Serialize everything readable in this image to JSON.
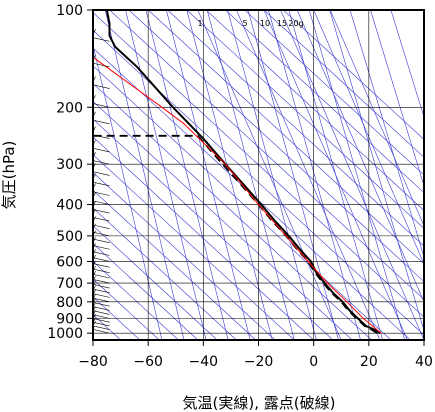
{
  "chart_data": {
    "type": "line",
    "subtype": "emagram",
    "xlabel": "気温(実線), 露点(破線)",
    "ylabel": "気圧(hPa)",
    "xlim": [
      -80,
      40
    ],
    "ylim": [
      1050,
      100
    ],
    "yscale": "log",
    "x_ticks": [
      -80,
      -60,
      -40,
      -20,
      0,
      20,
      40
    ],
    "x_tick_labels": [
      "−80",
      "−60",
      "−40",
      "−20",
      "0",
      "20",
      "40"
    ],
    "y_ticks": [
      100,
      200,
      300,
      400,
      500,
      600,
      700,
      800,
      900,
      1000
    ],
    "grid": true,
    "mixing_ratio_labels": [
      "1",
      "5",
      "10",
      "15",
      "20g"
    ],
    "colors": {
      "temperature": "#000000",
      "dewpoint": "#000000",
      "parcel": "#ff0000",
      "adiabats": "#3b3bd6",
      "grid": "#000000"
    },
    "series": [
      {
        "style": "solid",
        "points": [
          [
            24,
            1000
          ],
          [
            22,
            975
          ],
          [
            19,
            950
          ],
          [
            16,
            900
          ],
          [
            13,
            850
          ],
          [
            10.5,
            800
          ],
          [
            7,
            750
          ],
          [
            4,
            700
          ],
          [
            1,
            650
          ],
          [
            -1,
            600
          ],
          [
            -5,
            550
          ],
          [
            -9,
            500
          ],
          [
            -14,
            450
          ],
          [
            -19,
            400
          ],
          [
            -25,
            350
          ],
          [
            -32,
            300
          ],
          [
            -40,
            250
          ],
          [
            -51,
            200
          ],
          [
            -64,
            150
          ],
          [
            -72,
            130
          ],
          [
            -74,
            120
          ],
          [
            -74,
            110
          ],
          [
            -75,
            100
          ]
        ]
      },
      {
        "style": "dashed",
        "points": [
          [
            23,
            1000
          ],
          [
            21,
            975
          ],
          [
            18.5,
            950
          ],
          [
            15.5,
            900
          ],
          [
            12.5,
            850
          ],
          [
            10,
            800
          ],
          [
            6.5,
            750
          ],
          [
            3.5,
            700
          ],
          [
            0.5,
            650
          ],
          [
            -2,
            600
          ],
          [
            -6,
            550
          ],
          [
            -10,
            500
          ],
          [
            -15,
            450
          ],
          [
            -20,
            400
          ],
          [
            -26,
            350
          ],
          [
            -33,
            300
          ],
          [
            -42,
            245
          ],
          [
            -80,
            245
          ]
        ]
      },
      {
        "style": "red",
        "points": [
          [
            24.5,
            1000
          ],
          [
            18,
            900
          ],
          [
            12,
            800
          ],
          [
            5,
            700
          ],
          [
            -2,
            600
          ],
          [
            -10,
            500
          ],
          [
            -20,
            400
          ],
          [
            -32,
            300
          ],
          [
            -47,
            225
          ],
          [
            -55,
            200
          ],
          [
            -80,
            140
          ]
        ]
      }
    ],
    "wind_barbs": {
      "x_position": -74,
      "pressures": [
        1000,
        975,
        950,
        925,
        900,
        875,
        850,
        825,
        800,
        775,
        750,
        725,
        700,
        675,
        650,
        625,
        600,
        575,
        550,
        525,
        500,
        475,
        450,
        425,
        400,
        375,
        350,
        325,
        300,
        275,
        250,
        225,
        200,
        175,
        150,
        125,
        100
      ]
    }
  }
}
